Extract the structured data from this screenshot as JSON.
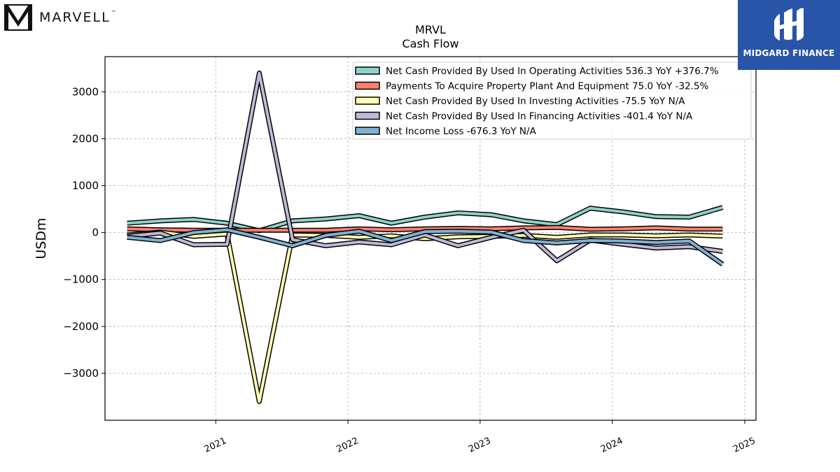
{
  "branding": {
    "company_name": "MARVELL",
    "trademark": "™",
    "partner_name": "MIDGARD FINANCE"
  },
  "chart_data": {
    "type": "line",
    "title": "MRVL",
    "subtitle": "Cash Flow",
    "xlabel": "",
    "ylabel": "USDm",
    "xlim": [
      "2020-03-01",
      "2025-02-01"
    ],
    "ylim": [
      -4000,
      3750
    ],
    "x_ticks": [
      "2021",
      "2022",
      "2023",
      "2024",
      "2025"
    ],
    "y_ticks": [
      3000,
      2000,
      1000,
      0,
      -1000,
      -2000,
      -3000
    ],
    "grid": true,
    "legend_position": "top-right",
    "x": [
      "2020-05-01",
      "2020-08-01",
      "2020-11-01",
      "2021-02-01",
      "2021-05-01",
      "2021-08-01",
      "2021-11-01",
      "2022-02-01",
      "2022-05-01",
      "2022-08-01",
      "2022-11-01",
      "2023-02-01",
      "2023-05-01",
      "2023-08-01",
      "2023-11-01",
      "2024-02-01",
      "2024-05-01",
      "2024-08-01",
      "2024-11-01"
    ],
    "series": [
      {
        "name": "Net Cash Provided By Used In Operating Activities",
        "legend_label": "Net Cash Provided By Used In Operating Activities  536.3 YoY +376.7%",
        "color": "#8dd3c7",
        "values": [
          200,
          250,
          280,
          200,
          40,
          250,
          290,
          360,
          200,
          330,
          420,
          380,
          250,
          170,
          520,
          440,
          340,
          330,
          536
        ]
      },
      {
        "name": "Payments To Acquire Property Plant And Equipment",
        "legend_label": "Payments To Acquire Property Plant And Equipment  75.0 YoY -32.5%",
        "color": "#fb8072",
        "values": [
          80,
          60,
          50,
          50,
          50,
          50,
          50,
          80,
          60,
          80,
          90,
          80,
          100,
          110,
          70,
          80,
          100,
          75,
          75
        ]
      },
      {
        "name": "Net Cash Provided By Used In Investing Activities",
        "legend_label": "Net Cash Provided By Used In Investing Activities  -75.5 YoY N/A",
        "color": "#ffffb3",
        "values": [
          -50,
          10,
          -80,
          -30,
          -3600,
          -50,
          -60,
          -100,
          -70,
          -130,
          -90,
          -80,
          -60,
          -100,
          -50,
          -50,
          -70,
          -50,
          -75
        ]
      },
      {
        "name": "Net Cash Provided By Used In Financing Activities",
        "legend_label": "Net Cash Provided By Used In Financing Activities  -401.4 YoY N/A",
        "color": "#bebada",
        "values": [
          -80,
          -10,
          -260,
          -250,
          3400,
          -150,
          -280,
          -200,
          -260,
          -50,
          -280,
          -100,
          50,
          -600,
          -160,
          -250,
          -330,
          -300,
          -401
        ]
      },
      {
        "name": "Net Income Loss",
        "legend_label": "Net Income Loss  -676.3 YoY N/A",
        "color": "#80b1d3",
        "values": [
          -100,
          -170,
          0,
          60,
          -100,
          -280,
          -60,
          30,
          -170,
          20,
          30,
          10,
          -170,
          -220,
          -170,
          -180,
          -210,
          -180,
          -676
        ]
      }
    ]
  }
}
